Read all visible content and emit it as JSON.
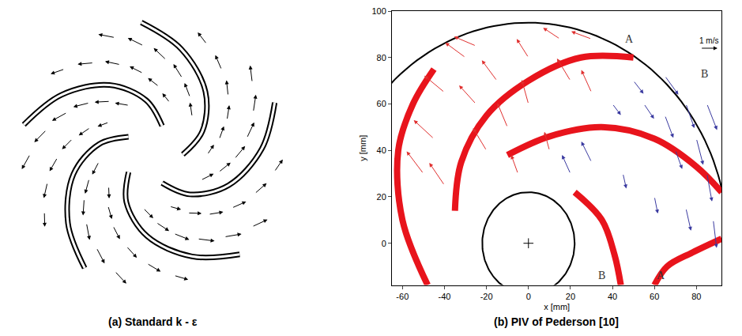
{
  "chart_data": [
    {
      "type": "vector_field",
      "caption": "(a) Standard k - ε",
      "tick_labels": false,
      "color": "#000000",
      "blade_shape": [
        [
          0.22,
          0
        ],
        [
          0.4,
          25
        ],
        [
          0.6,
          50
        ],
        [
          0.8,
          75
        ],
        [
          0.97,
          95
        ]
      ],
      "blade_angles": [
        0,
        72,
        144,
        216,
        288
      ],
      "passage_vectors": [
        [
          0.4,
          44,
          0.5,
          0.7
        ],
        [
          0.5,
          57,
          0.55,
          0.75
        ],
        [
          0.6,
          69,
          0.6,
          0.8
        ],
        [
          0.7,
          82,
          0.6,
          0.85
        ],
        [
          0.8,
          95,
          0.55,
          0.9
        ],
        [
          0.9,
          108,
          0.5,
          0.9
        ],
        [
          0.4,
          72,
          0.4,
          0.6
        ],
        [
          0.5,
          85,
          0.45,
          0.7
        ],
        [
          0.6,
          97,
          0.5,
          0.75
        ],
        [
          0.7,
          110,
          0.5,
          0.8
        ],
        [
          0.8,
          123,
          0.45,
          0.85
        ],
        [
          0.9,
          136,
          0.4,
          0.8
        ]
      ]
    },
    {
      "type": "vector_field",
      "caption": "(b) PIV of Pederson [10]",
      "x_label": "x [mm]",
      "y_label": "y [mm]",
      "xlim": [
        -65,
        92
      ],
      "ylim": [
        -18,
        100
      ],
      "xticks": [
        -60,
        -40,
        -20,
        0,
        20,
        40,
        60,
        80
      ],
      "yticks": [
        0,
        20,
        40,
        60,
        80,
        100
      ],
      "grid": false,
      "hub": {
        "center": [
          0,
          0
        ],
        "radius": 22,
        "color": "#000000"
      },
      "casing": {
        "center": [
          0,
          0
        ],
        "radius": 95,
        "color": "#000000"
      },
      "blades": {
        "color": "#e8141c",
        "curves": [
          [
            [
              -48,
              -18
            ],
            [
              -60,
              10
            ],
            [
              -62,
              40
            ],
            [
              -55,
              60
            ],
            [
              -45,
              75
            ]
          ],
          [
            [
              -35,
              14
            ],
            [
              -32,
              35
            ],
            [
              -20,
              55
            ],
            [
              0,
              70
            ],
            [
              25,
              80
            ],
            [
              50,
              80
            ]
          ],
          [
            [
              -10,
              38
            ],
            [
              10,
              46
            ],
            [
              35,
              50
            ],
            [
              60,
              45
            ],
            [
              80,
              33
            ],
            [
              92,
              22
            ]
          ],
          [
            [
              22,
              22
            ],
            [
              35,
              10
            ],
            [
              41,
              -5
            ],
            [
              44,
              -18
            ]
          ],
          [
            [
              92,
              2
            ],
            [
              78,
              -4
            ],
            [
              66,
              -10
            ],
            [
              60,
              -18
            ]
          ]
        ]
      },
      "series": [
        {
          "color": "#e0302f",
          "vectors": [
            [
              -20,
              40,
              -0.8,
              1.2
            ],
            [
              -10,
              50,
              -0.6,
              1.3
            ],
            [
              0,
              60,
              -0.4,
              1.3
            ],
            [
              -25,
              60,
              -1.0,
              1.0
            ],
            [
              -15,
              70,
              -0.9,
              1.1
            ],
            [
              0,
              80,
              -0.7,
              1.0
            ],
            [
              15,
              88,
              -1.0,
              0.6
            ],
            [
              -30,
              80,
              -1.2,
              0.8
            ],
            [
              -40,
              65,
              -1.2,
              0.9
            ],
            [
              -45,
              45,
              -1.2,
              1.0
            ],
            [
              -50,
              30,
              -1.0,
              1.2
            ],
            [
              -40,
              25,
              -0.9,
              1.2
            ],
            [
              20,
              70,
              -0.8,
              1.2
            ],
            [
              30,
              65,
              -0.6,
              1.2
            ],
            [
              10,
              40,
              -0.3,
              1.0
            ],
            [
              -5,
              30,
              -0.4,
              1.0
            ],
            [
              -25,
              85,
              -1.3,
              0.5
            ],
            [
              30,
              88,
              -1.2,
              0.4
            ]
          ]
        },
        {
          "color": "#3a3aa0",
          "vectors": [
            [
              20,
              30,
              -0.5,
              1.0
            ],
            [
              30,
              35,
              -0.6,
              1.1
            ],
            [
              45,
              30,
              0.2,
              -0.8
            ],
            [
              55,
              60,
              0.6,
              -0.8
            ],
            [
              65,
              55,
              0.5,
              -1.2
            ],
            [
              75,
              60,
              0.5,
              -1.3
            ],
            [
              80,
              45,
              0.4,
              -1.4
            ],
            [
              85,
              30,
              0.3,
              -1.5
            ],
            [
              70,
              40,
              0.4,
              -1.0
            ],
            [
              60,
              20,
              0.2,
              -0.9
            ],
            [
              75,
              15,
              0.3,
              -1.2
            ],
            [
              88,
              10,
              0.2,
              -1.5
            ],
            [
              50,
              70,
              0.6,
              -0.7
            ],
            [
              65,
              72,
              0.8,
              -1.0
            ],
            [
              40,
              60,
              0.5,
              -0.6
            ],
            [
              85,
              60,
              0.6,
              -1.4
            ]
          ]
        }
      ],
      "annotations": [
        {
          "text": "A",
          "x": 48,
          "y": 88
        },
        {
          "text": "B",
          "x": 84,
          "y": 73
        },
        {
          "text": "B",
          "x": 35,
          "y": -14
        },
        {
          "text": "A",
          "x": 63,
          "y": -14
        }
      ],
      "scale": {
        "label": "1 m/s",
        "value": 1,
        "x": 82,
        "y": 84
      }
    }
  ]
}
